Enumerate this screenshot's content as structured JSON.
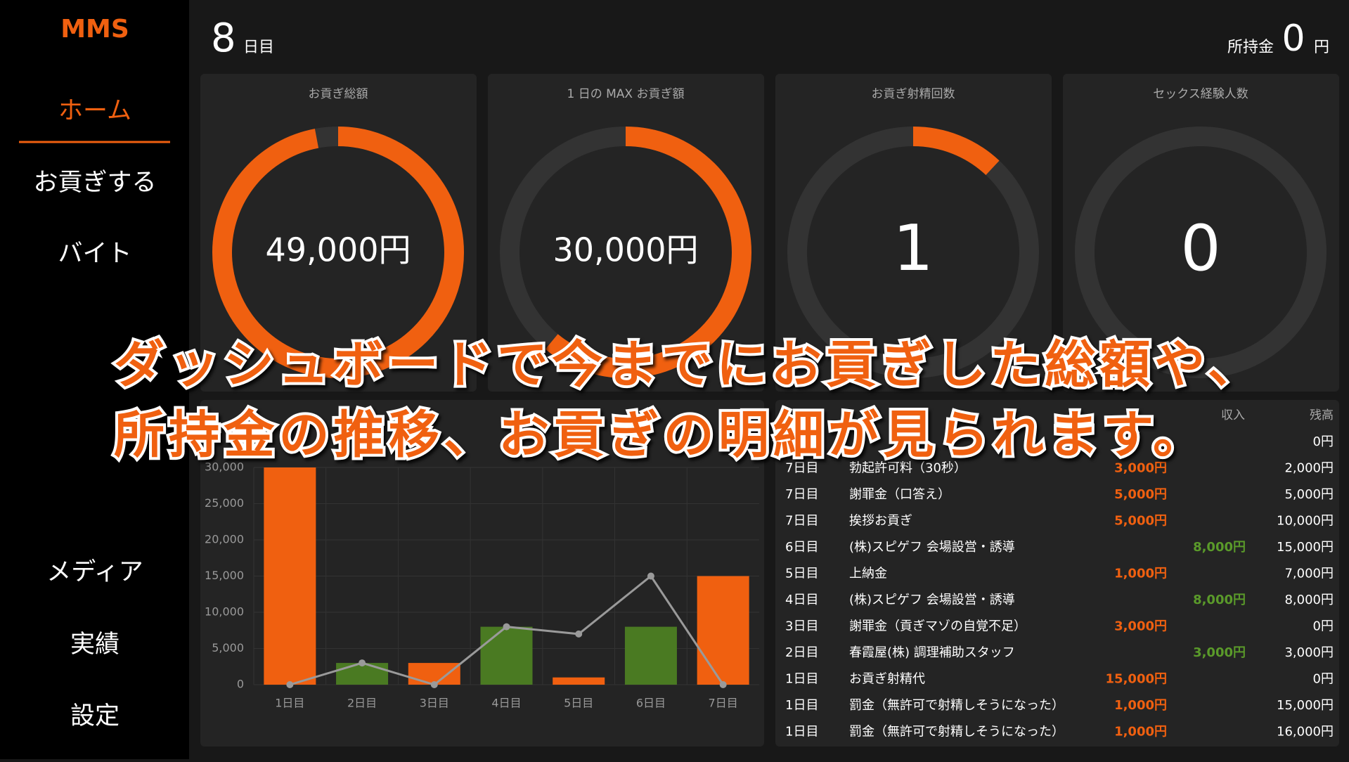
{
  "sidebar": {
    "logo": "MMS",
    "nav_top": [
      "ホーム",
      "お貢ぎする",
      "バイト"
    ],
    "nav_bottom": [
      "メディア",
      "実績",
      "設定"
    ]
  },
  "header": {
    "day": "8",
    "day_unit": "日目",
    "money_label": "所持金",
    "money": "0",
    "money_unit": "円"
  },
  "cards": [
    {
      "title": "お貢ぎ総額",
      "value": "49,000円",
      "gauge_percent": 97
    },
    {
      "title": "1 日の MAX お貢ぎ額",
      "value": "30,000円",
      "gauge_percent": 61
    },
    {
      "title": "お貢ぎ射精回数",
      "value": "1",
      "gauge_percent": 12
    },
    {
      "title": "セックス経験人数",
      "value": "0",
      "gauge_percent": 0
    }
  ],
  "chart_data": {
    "type": "bar",
    "categories": [
      "1日目",
      "2日目",
      "3日目",
      "4日目",
      "5日目",
      "6日目",
      "7日目"
    ],
    "series": [
      {
        "type": "bar",
        "color": "#f06010",
        "values": [
          30000,
          0,
          3000,
          0,
          1000,
          0,
          15000
        ]
      },
      {
        "type": "bar",
        "color": "#4a7a22",
        "values": [
          0,
          3000,
          0,
          8000,
          0,
          8000,
          0
        ]
      },
      {
        "type": "line",
        "color": "#9a9a9a",
        "values": [
          0,
          3000,
          0,
          8000,
          7000,
          15000,
          0
        ]
      }
    ],
    "ylim": [
      0,
      30000
    ],
    "yticks": [
      0,
      {
        "value": 5000,
        "label": "5,000"
      },
      {
        "value": 10000,
        "label": "10,000"
      },
      {
        "value": 15000,
        "label": "15,000"
      },
      {
        "value": 20000,
        "label": "20,000"
      },
      {
        "value": 25000,
        "label": "25,000"
      },
      {
        "value": 30000,
        "label": "30,000"
      }
    ],
    "grid": true
  },
  "table": {
    "header": {
      "income": "収入",
      "balance": "残高"
    },
    "rows": [
      [
        null,
        null,
        null,
        null,
        "0円"
      ],
      [
        "7日目",
        "勃起許可料（30秒）",
        "3,000円",
        null,
        "2,000円"
      ],
      [
        "7日目",
        "謝罪金（口答え）",
        "5,000円",
        null,
        "5,000円"
      ],
      [
        "7日目",
        "挨拶お貢ぎ",
        "5,000円",
        null,
        "10,000円"
      ],
      [
        "6日目",
        "(株)スピゲフ 会場設営・誘導",
        null,
        "8,000円",
        "15,000円"
      ],
      [
        "5日目",
        "上納金",
        "1,000円",
        null,
        "7,000円"
      ],
      [
        "4日目",
        "(株)スピゲフ 会場設営・誘導",
        null,
        "8,000円",
        "8,000円"
      ],
      [
        "3日目",
        "謝罪金（貢ぎマゾの自覚不足）",
        "3,000円",
        null,
        "0円"
      ],
      [
        "2日目",
        "春霞屋(株) 調理補助スタッフ",
        null,
        "3,000円",
        "3,000円"
      ],
      [
        "1日目",
        "お貢ぎ射精代",
        "15,000円",
        null,
        "0円"
      ],
      [
        "1日目",
        "罰金（無許可で射精しそうになった）",
        "1,000円",
        null,
        "15,000円"
      ],
      [
        "1日目",
        "罰金（無許可で射精しそうになった）",
        "1,000円",
        null,
        "16,000円"
      ]
    ]
  },
  "caption": {
    "lines": [
      "ダッシュボードで今までにお貢ぎした総額や、",
      "所持金の推移、お貢ぎの明細が見られます。"
    ]
  }
}
